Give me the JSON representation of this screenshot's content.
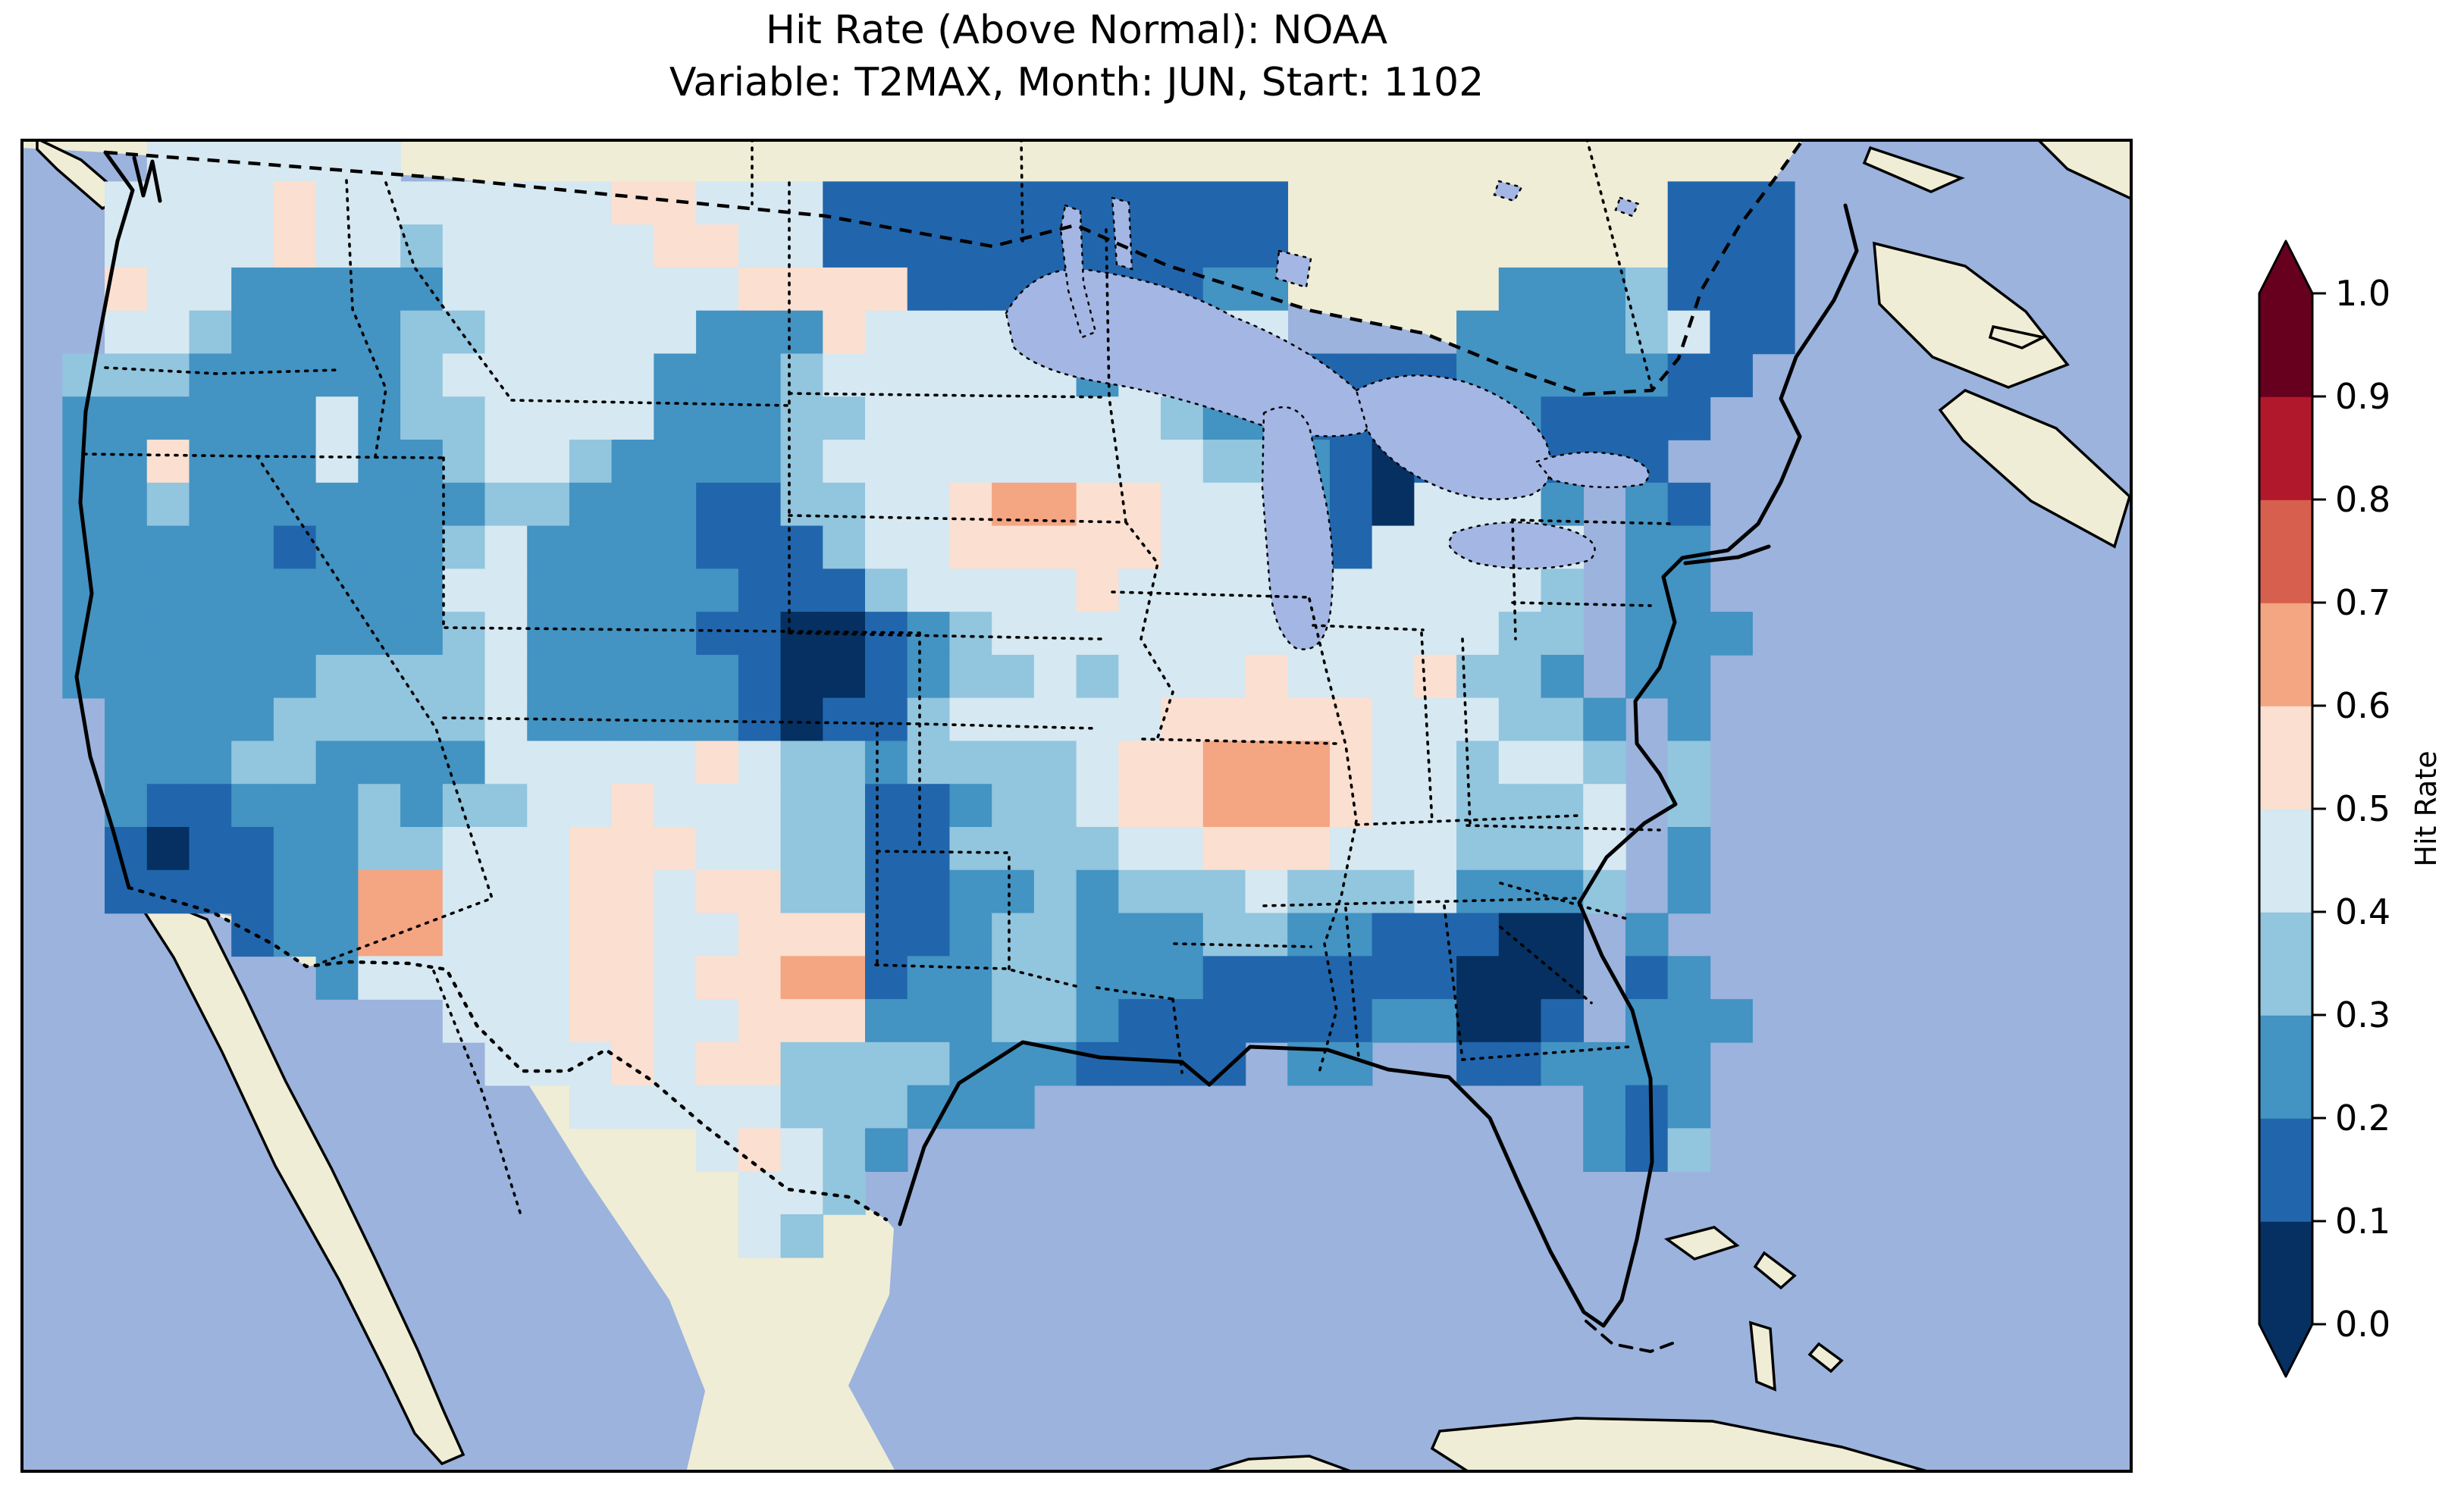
{
  "title": {
    "line1": "Hit Rate (Above Normal): NOAA",
    "line2": "Variable: T2MAX, Month: JUN, Start: 1102"
  },
  "colorbar": {
    "label": "Hit Rate",
    "tick_labels": [
      "1.0",
      "0.9",
      "0.8",
      "0.7",
      "0.6",
      "0.5",
      "0.4",
      "0.3",
      "0.2",
      "0.1",
      "0.0"
    ],
    "over_arrow_color": "#67001f",
    "under_arrow_color": "#053061"
  },
  "map": {
    "ocean_color": "#9bb3dd",
    "land_color": "#efedd5",
    "lake_color": "#a4b6e3",
    "outline_color": "#000000"
  },
  "chart_data": {
    "type": "heatmap",
    "title": "Hit Rate (Above Normal): NOAA",
    "subtitle": "Variable: T2MAX, Month: JUN, Start: 1102",
    "source": "NOAA",
    "variable": "T2MAX",
    "month": "JUN",
    "start": "1102",
    "colorbar_label": "Hit Rate",
    "colormap": "RdBu_r (10 discrete bins, extend both)",
    "vmin": 0.0,
    "vmax": 1.0,
    "bin_edges": [
      0.0,
      0.1,
      0.2,
      0.3,
      0.4,
      0.5,
      0.6,
      0.7,
      0.8,
      0.9,
      1.0
    ],
    "bin_colors": [
      "#053061",
      "#2166ac",
      "#4393c3",
      "#92c5de",
      "#d6e8f1",
      "#fbdfd0",
      "#f4a582",
      "#d6604d",
      "#b2182b",
      "#67001f"
    ],
    "region": "Continental United States",
    "legend_position": "right",
    "notes": "Hit rates over CONUS are mostly 0.1-0.5 (blues). Lowest pockets (<0.1, navy): western Nebraska / NE Colorado, south Georgia, southern California, northern lower Michigan. Dark 0.1-0.2 bands: ND-MN border, Maine, New England coast, PA-NJ, Deep South (MS/AL/GA), east Texas, Gulf coast. Isolated 0.5-0.7 (pink/orange): SE Iowa - west Illinois, west Texas, SW New Mexico, scattered N-plains cells.",
    "grid": {
      "cols": 50,
      "rows": 31,
      "cell_encoding": {
        "0": "0.0-0.1",
        "1": "0.1-0.2",
        "2": "0.2-0.3",
        "3": "0.3-0.4",
        "4": "0.4-0.5",
        "5": "0.5-0.6",
        "6": "0.6-0.7",
        ".": "no data / outside US"
      },
      "rows_data": [
        "...444444.........................................",
        "..4444544444445544411111111111.........111........",
        "..4444544344444554411111111111.........111........",
        "..5442222244444445555111111122.....2223111........",
        "..4432222334444422254444422244....22223411........",
        ".3332222234444422234444442442211112222211.........",
        ".222222423344442223344444443221111221111..........",
        ".22522242234432222344444444433210122111...........",
        ".223222222233222113344566554442104442 21..........",
        ".222221222342222111344555554442144444 22..........",
        ".222222222442222211134444544444444443 22..........",
        ".222222222342222110012344444444444433 222.........",
        ".222222333342222210012334344454445332 22..........",
        "..222233333422222101134444455555444332 2..........",
        "..222332222444445433233334556665443443 3..........",
        "..211222323344544433112334556665443334 3..........",
        "..101122334445554433113333445554443334 2..........",
        "..111122664445545533112232333433342223 2..........",
        ".....12266444554455511233222332211100 2...........",
        ".......244444554556612233222111111000 12..........",
        "..........444554455522233211111122001 222.........",
        "...........444545533332221111.22..112222..........",
        ".............44444333222.............212..........",
        "................45432................213..........",
        ".................443..............................",
        ".................43...............................",
        "..................................................",
        "..................................................",
        "..................................................",
        "..................................................",
        ".................................................."
      ]
    }
  }
}
